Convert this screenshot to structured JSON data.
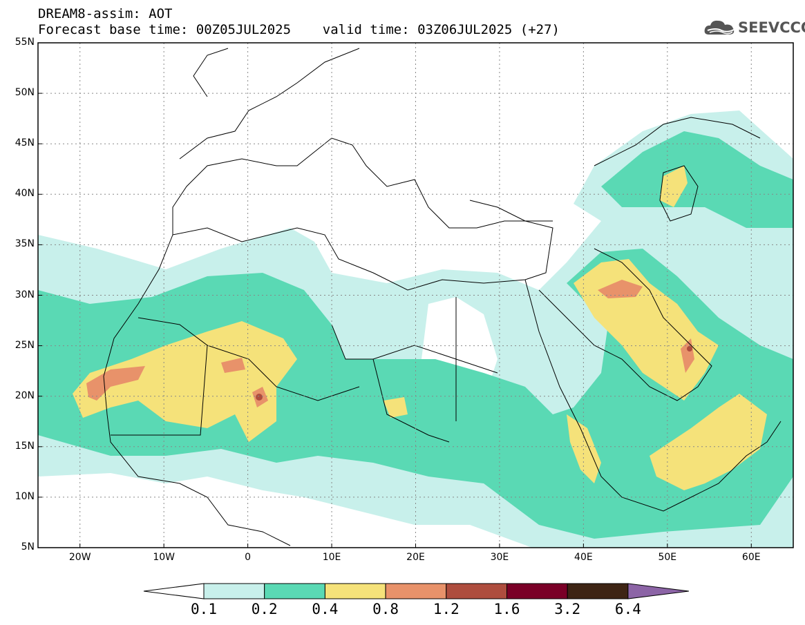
{
  "header": {
    "line1": "DREAM8-assim: AOT",
    "line2": "Forecast base time: 00Z05JUL2025    valid time: 03Z06JUL2025 (+27)"
  },
  "logo": {
    "text": "SEEVCCC",
    "icon": "cloud-icon"
  },
  "map": {
    "lon_range": [
      -25,
      65
    ],
    "lat_range": [
      5,
      55
    ],
    "lon_ticks": [
      "20W",
      "10W",
      "0",
      "10E",
      "20E",
      "30E",
      "40E",
      "50E",
      "60E"
    ],
    "lat_ticks": [
      "55N",
      "50N",
      "45N",
      "40N",
      "35N",
      "30N",
      "25N",
      "20N",
      "15N",
      "10N",
      "5N"
    ],
    "grid": "dotted"
  },
  "colorbar": {
    "labels": [
      "0.1",
      "0.2",
      "0.4",
      "0.8",
      "1.2",
      "1.6",
      "3.2",
      "6.4"
    ],
    "colors": [
      "#ffffff",
      "#c8f0eb",
      "#5ad9b4",
      "#f5e27a",
      "#e8926a",
      "#ae4d3e",
      "#7a0027",
      "#3e2414",
      "#8c64a6"
    ]
  }
}
